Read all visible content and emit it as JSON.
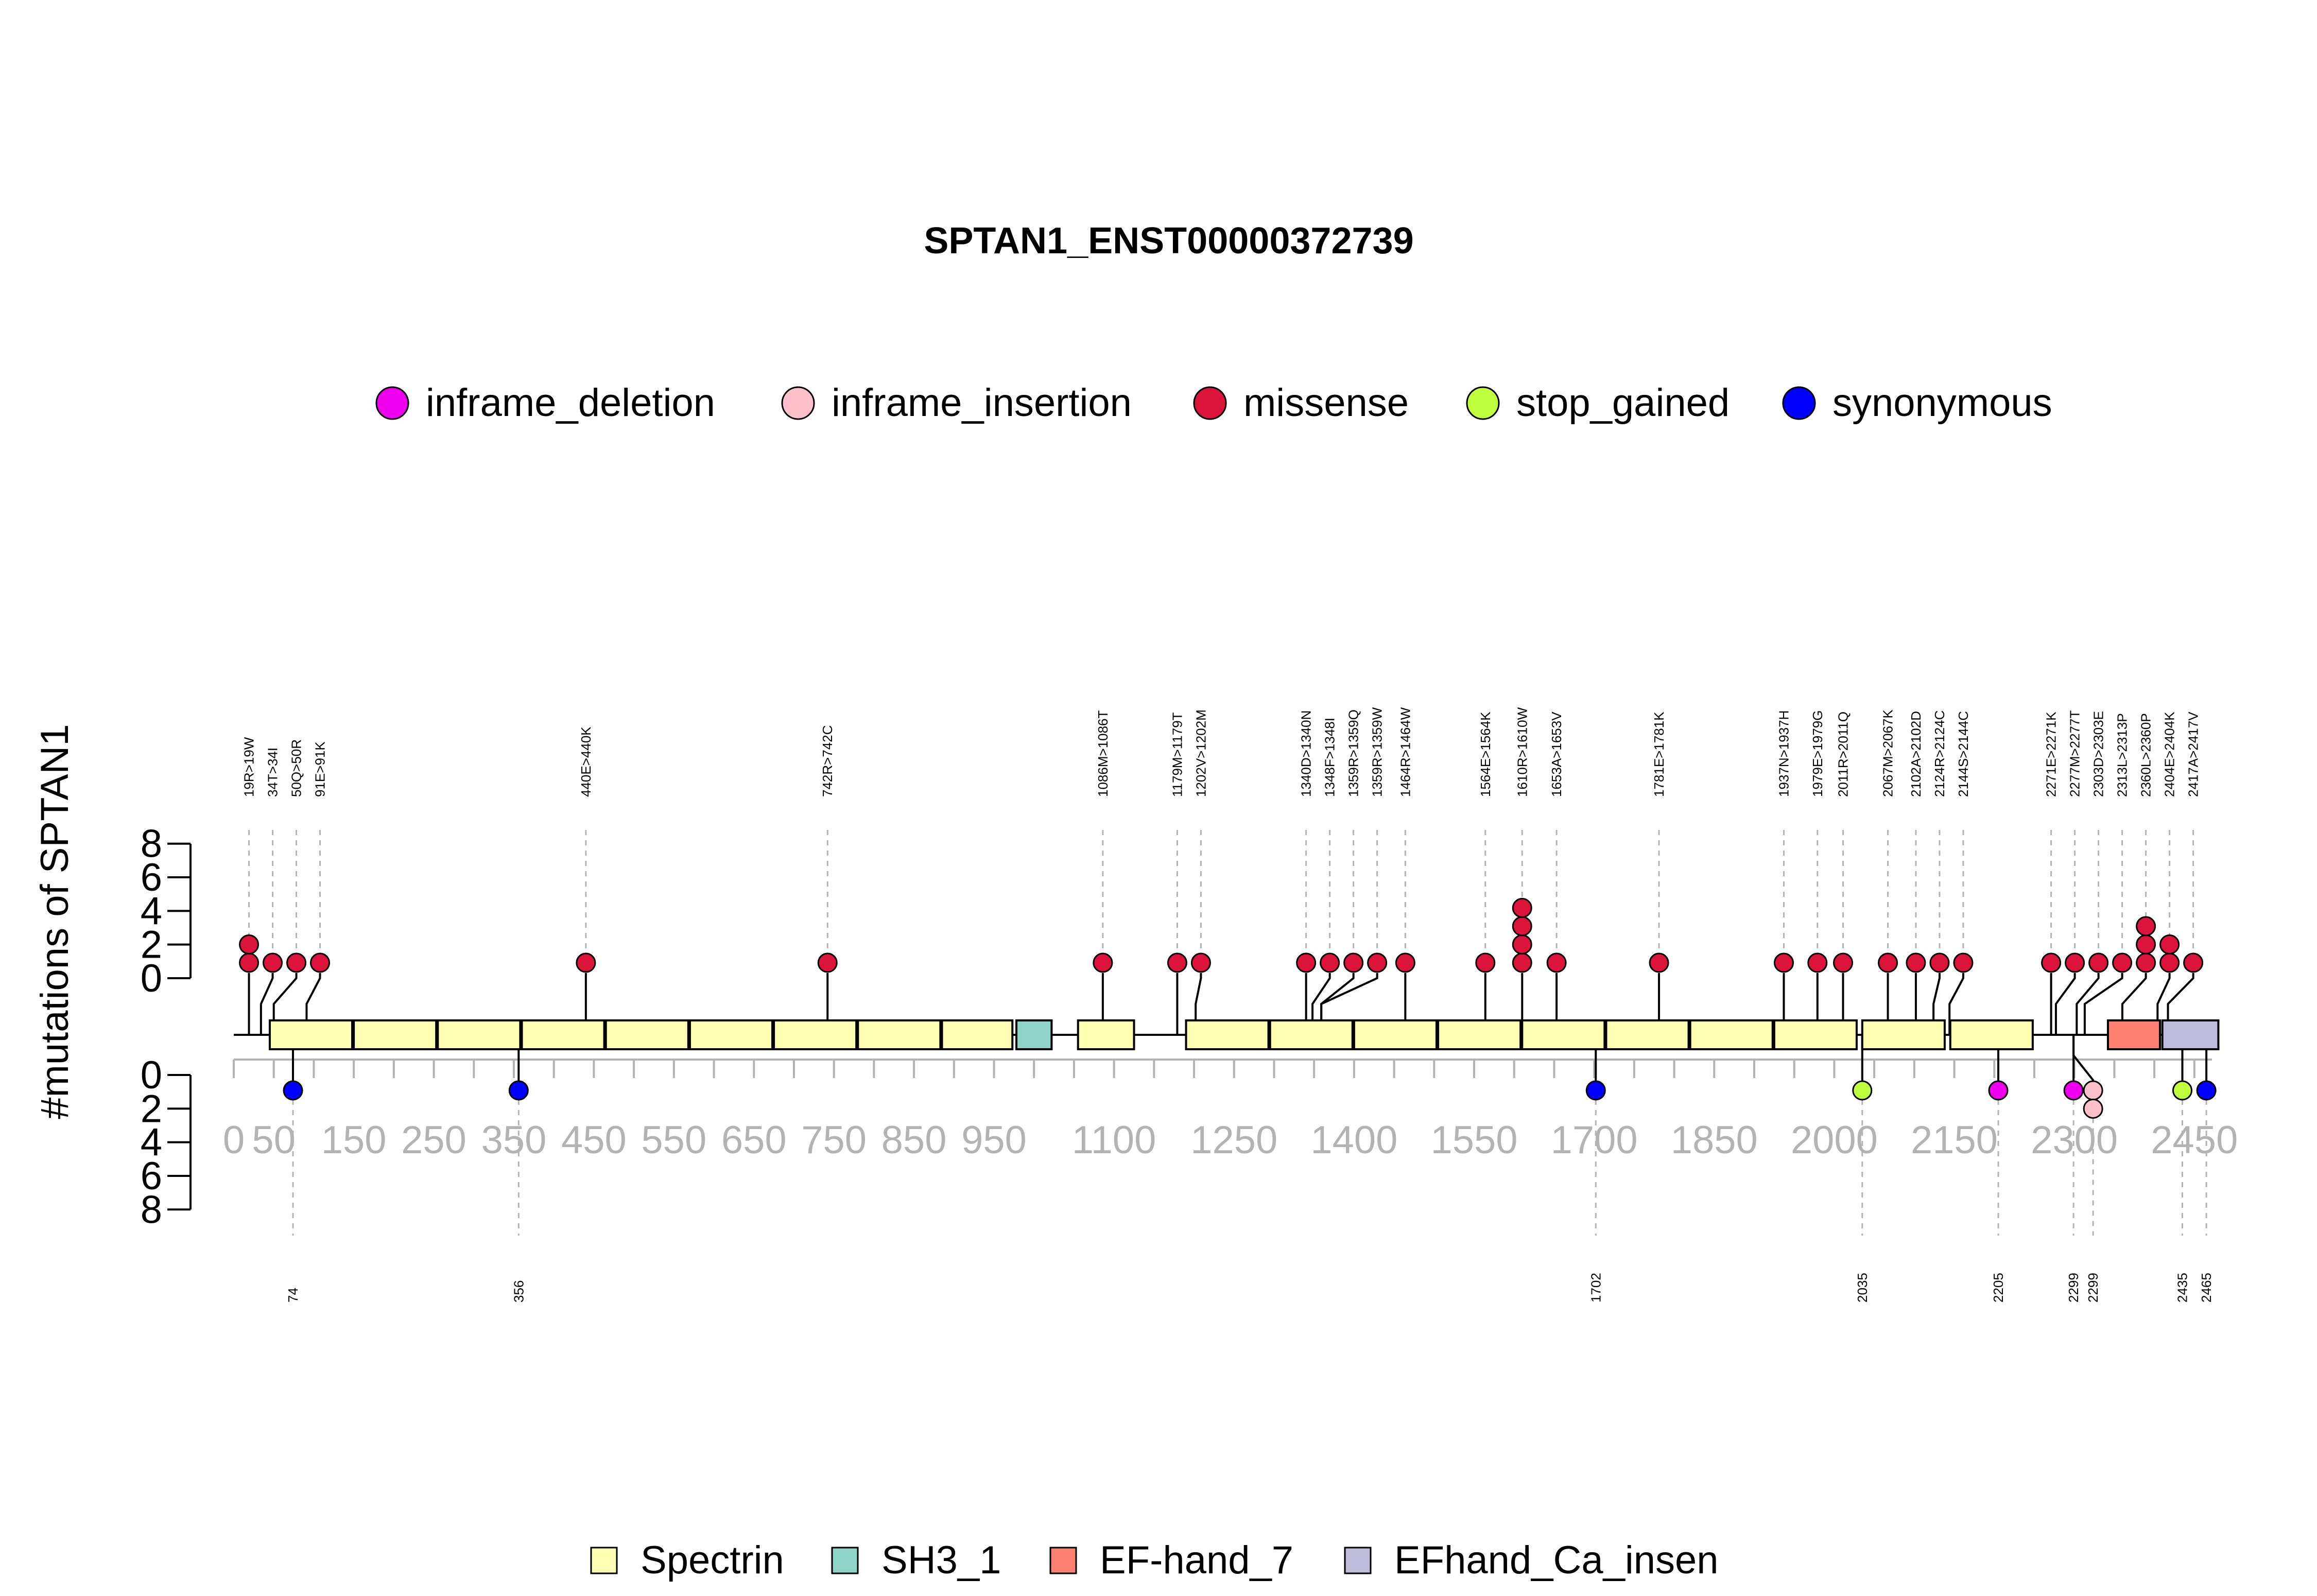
{
  "chart_data": {
    "type": "lollipop",
    "title": "SPTAN1_ENST00000372739",
    "ylabel": "#mutations of SPTAN1",
    "protein_length": 2472,
    "x_ticks": [
      0,
      50,
      150,
      250,
      350,
      450,
      550,
      650,
      750,
      850,
      950,
      1100,
      1250,
      1400,
      1550,
      1700,
      1850,
      2000,
      2150,
      2300,
      2450
    ],
    "y_ticks_top": [
      "8",
      "6",
      "4",
      "2",
      "0"
    ],
    "y_ticks_bottom": [
      "0",
      "2",
      "4",
      "6",
      "8"
    ],
    "colors": {
      "inframe_deletion": "#ee00ee",
      "inframe_insertion": "#ffc0cb",
      "missense": "#dc143c",
      "stop_gained": "#c0ff3e",
      "synonymous": "#0000ff"
    },
    "mutation_legend": [
      {
        "label": "inframe_deletion",
        "color": "#ee00ee"
      },
      {
        "label": "inframe_insertion",
        "color": "#ffc0cb"
      },
      {
        "label": "missense",
        "color": "#dc143c"
      },
      {
        "label": "stop_gained",
        "color": "#c0ff3e"
      },
      {
        "label": "synonymous",
        "color": "#0000ff"
      }
    ],
    "domain_legend": [
      {
        "label": "Spectrin",
        "color": "#ffffb3"
      },
      {
        "label": "SH3_1",
        "color": "#8dd3c7"
      },
      {
        "label": "EF-hand_7",
        "color": "#fb8072"
      },
      {
        "label": "EFhand_Ca_insen",
        "color": "#bebada"
      }
    ],
    "domains": [
      {
        "name": "Spectrin",
        "start": 45,
        "end": 148
      },
      {
        "name": "Spectrin",
        "start": 150,
        "end": 253
      },
      {
        "name": "Spectrin",
        "start": 255,
        "end": 358
      },
      {
        "name": "Spectrin",
        "start": 360,
        "end": 463
      },
      {
        "name": "Spectrin",
        "start": 465,
        "end": 568
      },
      {
        "name": "Spectrin",
        "start": 570,
        "end": 673
      },
      {
        "name": "Spectrin",
        "start": 675,
        "end": 778
      },
      {
        "name": "Spectrin",
        "start": 780,
        "end": 883
      },
      {
        "name": "Spectrin",
        "start": 885,
        "end": 973
      },
      {
        "name": "SH3_1",
        "start": 978,
        "end": 1022
      },
      {
        "name": "Spectrin",
        "start": 1055,
        "end": 1125
      },
      {
        "name": "Spectrin",
        "start": 1190,
        "end": 1293
      },
      {
        "name": "Spectrin",
        "start": 1295,
        "end": 1398
      },
      {
        "name": "Spectrin",
        "start": 1400,
        "end": 1503
      },
      {
        "name": "Spectrin",
        "start": 1505,
        "end": 1608
      },
      {
        "name": "Spectrin",
        "start": 1610,
        "end": 1713
      },
      {
        "name": "Spectrin",
        "start": 1715,
        "end": 1818
      },
      {
        "name": "Spectrin",
        "start": 1820,
        "end": 1923
      },
      {
        "name": "Spectrin",
        "start": 1925,
        "end": 2028
      },
      {
        "name": "Spectrin",
        "start": 2035,
        "end": 2138
      },
      {
        "name": "Spectrin",
        "start": 2145,
        "end": 2248
      },
      {
        "name": "EF-hand_7",
        "start": 2342,
        "end": 2407
      },
      {
        "name": "EFhand_Ca_insen",
        "start": 2410,
        "end": 2480
      }
    ],
    "mutations_top": [
      {
        "label": "19R>19W",
        "pos": 19,
        "count": 2,
        "type": "missense"
      },
      {
        "label": "34T>34I",
        "pos": 34,
        "count": 1,
        "type": "missense"
      },
      {
        "label": "50Q>50R",
        "pos": 50,
        "count": 1,
        "type": "missense"
      },
      {
        "label": "91E>91K",
        "pos": 91,
        "count": 1,
        "type": "missense"
      },
      {
        "label": "440E>440K",
        "pos": 440,
        "count": 1,
        "type": "missense"
      },
      {
        "label": "742R>742C",
        "pos": 742,
        "count": 1,
        "type": "missense"
      },
      {
        "label": "1086M>1086T",
        "pos": 1086,
        "count": 1,
        "type": "missense"
      },
      {
        "label": "1179M>1179T",
        "pos": 1179,
        "count": 1,
        "type": "missense"
      },
      {
        "label": "1202V>1202M",
        "pos": 1202,
        "count": 1,
        "type": "missense"
      },
      {
        "label": "1340D>1340N",
        "pos": 1340,
        "count": 1,
        "type": "missense"
      },
      {
        "label": "1348F>1348I",
        "pos": 1348,
        "count": 1,
        "type": "missense"
      },
      {
        "label": "1359R>1359Q",
        "pos": 1359,
        "count": 1,
        "type": "missense"
      },
      {
        "label": "1359R>1359W",
        "pos": 1359,
        "count": 1,
        "type": "missense"
      },
      {
        "label": "1464R>1464W",
        "pos": 1464,
        "count": 1,
        "type": "missense"
      },
      {
        "label": "1564E>1564K",
        "pos": 1564,
        "count": 1,
        "type": "missense"
      },
      {
        "label": "1610R>1610W",
        "pos": 1610,
        "count": 4,
        "type": "missense"
      },
      {
        "label": "1653A>1653V",
        "pos": 1653,
        "count": 1,
        "type": "missense"
      },
      {
        "label": "1781E>1781K",
        "pos": 1781,
        "count": 1,
        "type": "missense"
      },
      {
        "label": "1937N>1937H",
        "pos": 1937,
        "count": 1,
        "type": "missense"
      },
      {
        "label": "1979E>1979G",
        "pos": 1979,
        "count": 1,
        "type": "missense"
      },
      {
        "label": "2011R>2011Q",
        "pos": 2011,
        "count": 1,
        "type": "missense"
      },
      {
        "label": "2067M>2067K",
        "pos": 2067,
        "count": 1,
        "type": "missense"
      },
      {
        "label": "2102A>2102D",
        "pos": 2102,
        "count": 1,
        "type": "missense"
      },
      {
        "label": "2124R>2124C",
        "pos": 2124,
        "count": 1,
        "type": "missense"
      },
      {
        "label": "2144S>2144C",
        "pos": 2144,
        "count": 1,
        "type": "missense"
      },
      {
        "label": "2271E>2271K",
        "pos": 2271,
        "count": 1,
        "type": "missense"
      },
      {
        "label": "2277M>2277T",
        "pos": 2277,
        "count": 1,
        "type": "missense"
      },
      {
        "label": "2303D>2303E",
        "pos": 2303,
        "count": 1,
        "type": "missense"
      },
      {
        "label": "2313L>2313P",
        "pos": 2313,
        "count": 1,
        "type": "missense"
      },
      {
        "label": "2360L>2360P",
        "pos": 2360,
        "count": 3,
        "type": "missense"
      },
      {
        "label": "2404E>2404K",
        "pos": 2404,
        "count": 2,
        "type": "missense"
      },
      {
        "label": "2417A>2417V",
        "pos": 2417,
        "count": 1,
        "type": "missense"
      }
    ],
    "mutations_bottom": [
      {
        "label": "74",
        "pos": 74,
        "count": 1,
        "type": "synonymous"
      },
      {
        "label": "356",
        "pos": 356,
        "count": 1,
        "type": "synonymous"
      },
      {
        "label": "1702",
        "pos": 1702,
        "count": 1,
        "type": "synonymous"
      },
      {
        "label": "2035",
        "pos": 2035,
        "count": 1,
        "type": "stop_gained"
      },
      {
        "label": "2205",
        "pos": 2205,
        "count": 1,
        "type": "inframe_deletion"
      },
      {
        "label": "2299",
        "pos": 2299,
        "count": 1,
        "type": "inframe_deletion"
      },
      {
        "label": "2299",
        "pos": 2299,
        "count": 2,
        "type": "inframe_insertion"
      },
      {
        "label": "2435",
        "pos": 2435,
        "count": 1,
        "type": "stop_gained"
      },
      {
        "label": "2465",
        "pos": 2465,
        "count": 1,
        "type": "synonymous"
      }
    ]
  }
}
